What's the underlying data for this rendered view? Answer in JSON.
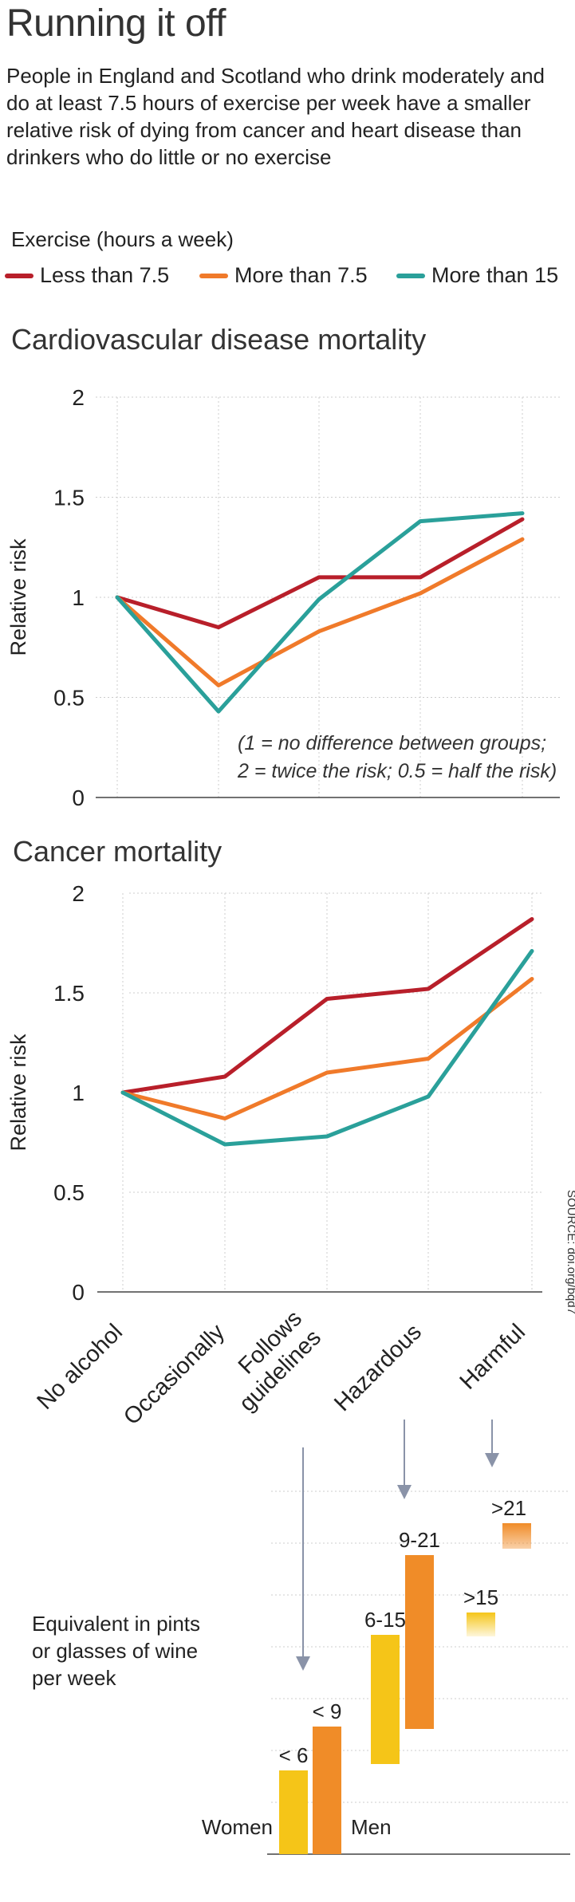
{
  "title": "Running it off",
  "subtitle": "People in England and Scotland who drink moderately and do at least 7.5 hours of exercise per week have a smaller relative risk of dying from cancer and heart disease than drinkers who do little or no exercise",
  "legend": {
    "title": "Exercise (hours a week)",
    "items": [
      {
        "label": "Less than 7.5",
        "color": "#b81f2a"
      },
      {
        "label": "More than 7.5",
        "color": "#f07a2a"
      },
      {
        "label": "More than 15",
        "color": "#2aa09a"
      }
    ]
  },
  "source": "SOURCE: doi.org/bqd7",
  "chart_data": [
    {
      "type": "line",
      "title": "Cardiovascular disease mortality",
      "ylabel": "Relative risk",
      "xlabel": "",
      "ylim": [
        0,
        2
      ],
      "yticks": [
        "0",
        "0.5",
        "1",
        "1.5",
        "2"
      ],
      "categories": [
        "No alcohol",
        "Occasionally",
        "Follows guidelines",
        "Hazardous",
        "Harmful"
      ],
      "grid": true,
      "annotation": [
        "(1 = no difference between groups;",
        "2 = twice the risk; 0.5 = half the risk)"
      ],
      "series": [
        {
          "name": "Less than 7.5",
          "color": "#b81f2a",
          "values": [
            1.0,
            0.85,
            1.1,
            1.1,
            1.39
          ]
        },
        {
          "name": "More than 7.5",
          "color": "#f07a2a",
          "values": [
            1.0,
            0.56,
            0.83,
            1.02,
            1.29
          ]
        },
        {
          "name": "More than 15",
          "color": "#2aa09a",
          "values": [
            1.0,
            0.43,
            0.99,
            1.38,
            1.42
          ]
        }
      ]
    },
    {
      "type": "line",
      "title": "Cancer mortality",
      "ylabel": "Relative risk",
      "xlabel": "",
      "ylim": [
        0,
        2
      ],
      "yticks": [
        "0",
        "0.5",
        "1",
        "1.5",
        "2"
      ],
      "categories": [
        "No alcohol",
        "Occasionally",
        "Follows guidelines",
        "Hazardous",
        "Harmful"
      ],
      "category_labels": [
        [
          "No alcohol"
        ],
        [
          "Occasionally"
        ],
        [
          "Follows",
          "guidelines"
        ],
        [
          "Hazardous"
        ],
        [
          "Harmful"
        ]
      ],
      "grid": true,
      "series": [
        {
          "name": "Less than 7.5",
          "color": "#b81f2a",
          "values": [
            1.0,
            1.08,
            1.47,
            1.52,
            1.87
          ]
        },
        {
          "name": "More than 7.5",
          "color": "#f07a2a",
          "values": [
            1.0,
            0.87,
            1.1,
            1.17,
            1.57
          ]
        },
        {
          "name": "More than 15",
          "color": "#2aa09a",
          "values": [
            1.0,
            0.74,
            0.78,
            0.98,
            1.71
          ]
        }
      ]
    },
    {
      "type": "bar",
      "title": "Equivalent in pints or glasses of wine per week",
      "title_lines": [
        "Equivalent in pints",
        "or glasses of wine",
        "per week"
      ],
      "groups": [
        {
          "women_label": "< 6",
          "women": [
            0,
            6
          ],
          "men_label": "< 9",
          "men": [
            0,
            9
          ]
        },
        {
          "women_label": "6-15",
          "women": [
            6,
            15
          ],
          "men_label": "9-21",
          "men": [
            9,
            21
          ]
        },
        {
          "women_label": ">15",
          "women": [
            15,
            15
          ],
          "men_label": ">21",
          "men": [
            21,
            21
          ]
        }
      ],
      "women_color": "#f5c518",
      "men_color": "#f08c28",
      "women_text": "Women",
      "men_text": "Men"
    }
  ]
}
